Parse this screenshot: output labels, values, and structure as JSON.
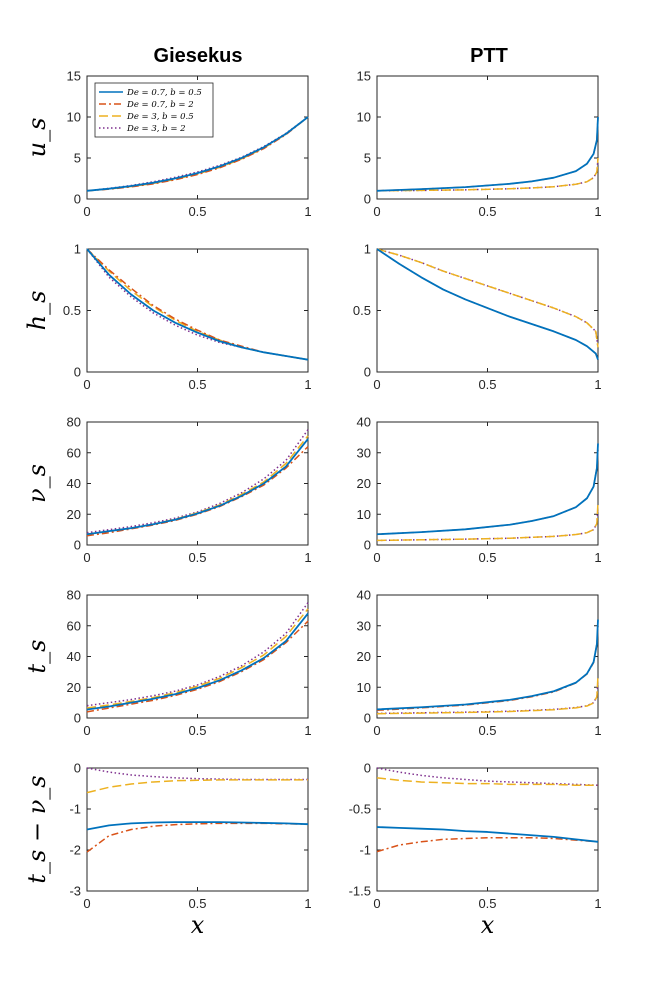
{
  "column_titles": [
    "Giesekus",
    "PTT"
  ],
  "x_axis_label": "x",
  "legend": [
    {
      "label": "De = 0.7, b = 0.5",
      "color": "#0072BD",
      "style": "solid"
    },
    {
      "label": "De = 0.7, b = 2",
      "color": "#D95319",
      "style": "dashdot"
    },
    {
      "label": "De = 3, b = 0.5",
      "color": "#EDB120",
      "style": "dashed"
    },
    {
      "label": "De = 3, b = 2",
      "color": "#7E2F8E",
      "style": "dotted"
    }
  ],
  "chart_data": [
    {
      "type": "line",
      "row": 0,
      "col": 0,
      "ylabel": "u_s",
      "xlim": [
        0,
        1
      ],
      "ylim": [
        0,
        15
      ],
      "xticks": [
        "0",
        "0.5",
        "1"
      ],
      "yticks": [
        "0",
        "5",
        "10",
        "15"
      ],
      "x": [
        0,
        0.1,
        0.2,
        0.3,
        0.4,
        0.5,
        0.6,
        0.7,
        0.8,
        0.9,
        1
      ],
      "series": [
        {
          "name": "De = 0.7, b = 0.5",
          "values": [
            1.0,
            1.26,
            1.58,
            1.99,
            2.51,
            3.16,
            3.98,
            5.01,
            6.31,
            7.94,
            10.0
          ]
        },
        {
          "name": "De = 0.7, b = 2",
          "values": [
            1.0,
            1.2,
            1.48,
            1.85,
            2.35,
            2.98,
            3.8,
            4.85,
            6.15,
            7.85,
            10.0
          ]
        },
        {
          "name": "De = 3, b = 0.5",
          "values": [
            1.0,
            1.22,
            1.52,
            1.9,
            2.4,
            3.05,
            3.85,
            4.9,
            6.2,
            7.9,
            10.0
          ]
        },
        {
          "name": "De = 3, b = 2",
          "values": [
            1.0,
            1.3,
            1.65,
            2.1,
            2.65,
            3.3,
            4.1,
            5.1,
            6.4,
            8.0,
            10.0
          ]
        }
      ]
    },
    {
      "type": "line",
      "row": 0,
      "col": 1,
      "ylabel": "",
      "xlim": [
        0,
        1
      ],
      "ylim": [
        0,
        15
      ],
      "xticks": [
        "0",
        "0.5",
        "1"
      ],
      "yticks": [
        "0",
        "5",
        "10",
        "15"
      ],
      "x": [
        0,
        0.2,
        0.4,
        0.6,
        0.7,
        0.8,
        0.9,
        0.95,
        0.98,
        0.995,
        1
      ],
      "series": [
        {
          "name": "De = 0.7, b = 0.5",
          "values": [
            1.0,
            1.2,
            1.45,
            1.85,
            2.15,
            2.6,
            3.4,
            4.3,
            5.5,
            7.2,
            10.0
          ]
        },
        {
          "name": "De = 0.7, b = 2",
          "values": [
            1.0,
            1.2,
            1.45,
            1.85,
            2.15,
            2.6,
            3.4,
            4.3,
            5.5,
            7.2,
            10.0
          ]
        },
        {
          "name": "De = 3, b = 0.5",
          "values": [
            1.0,
            1.05,
            1.12,
            1.25,
            1.35,
            1.5,
            1.8,
            2.1,
            2.6,
            3.3,
            5.0
          ]
        },
        {
          "name": "De = 3, b = 2",
          "values": [
            1.0,
            1.05,
            1.12,
            1.25,
            1.35,
            1.5,
            1.8,
            2.1,
            2.6,
            3.3,
            5.0
          ]
        }
      ]
    },
    {
      "type": "line",
      "row": 1,
      "col": 0,
      "ylabel": "h_s",
      "xlim": [
        0,
        1
      ],
      "ylim": [
        0,
        1
      ],
      "xticks": [
        "0",
        "0.5",
        "1"
      ],
      "yticks": [
        "0",
        "0.5",
        "1"
      ],
      "x": [
        0,
        0.1,
        0.2,
        0.3,
        0.4,
        0.5,
        0.6,
        0.7,
        0.8,
        0.9,
        1
      ],
      "series": [
        {
          "name": "De = 0.7, b = 0.5",
          "values": [
            1.0,
            0.79,
            0.63,
            0.5,
            0.4,
            0.32,
            0.25,
            0.2,
            0.16,
            0.13,
            0.1
          ]
        },
        {
          "name": "De = 0.7, b = 2",
          "values": [
            1.0,
            0.83,
            0.68,
            0.54,
            0.43,
            0.34,
            0.26,
            0.21,
            0.16,
            0.13,
            0.1
          ]
        },
        {
          "name": "De = 3, b = 0.5",
          "values": [
            1.0,
            0.82,
            0.66,
            0.53,
            0.42,
            0.33,
            0.26,
            0.2,
            0.16,
            0.13,
            0.1
          ]
        },
        {
          "name": "De = 3, b = 2",
          "values": [
            1.0,
            0.77,
            0.61,
            0.48,
            0.38,
            0.3,
            0.24,
            0.2,
            0.16,
            0.13,
            0.1
          ]
        }
      ]
    },
    {
      "type": "line",
      "row": 1,
      "col": 1,
      "ylabel": "",
      "xlim": [
        0,
        1
      ],
      "ylim": [
        0,
        1
      ],
      "xticks": [
        "0",
        "0.5",
        "1"
      ],
      "yticks": [
        "0",
        "0.5",
        "1"
      ],
      "x": [
        0,
        0.1,
        0.2,
        0.3,
        0.4,
        0.5,
        0.6,
        0.7,
        0.8,
        0.9,
        0.95,
        0.99,
        1
      ],
      "series": [
        {
          "name": "De = 0.7, b = 0.5",
          "values": [
            1.0,
            0.88,
            0.77,
            0.67,
            0.59,
            0.52,
            0.45,
            0.39,
            0.33,
            0.26,
            0.21,
            0.15,
            0.1
          ]
        },
        {
          "name": "De = 0.7, b = 2",
          "values": [
            1.0,
            0.88,
            0.77,
            0.67,
            0.59,
            0.52,
            0.45,
            0.39,
            0.33,
            0.26,
            0.21,
            0.15,
            0.1
          ]
        },
        {
          "name": "De = 3, b = 0.5",
          "values": [
            1.0,
            0.95,
            0.89,
            0.82,
            0.76,
            0.7,
            0.64,
            0.58,
            0.52,
            0.45,
            0.4,
            0.33,
            0.2
          ]
        },
        {
          "name": "De = 3, b = 2",
          "values": [
            1.0,
            0.95,
            0.89,
            0.82,
            0.76,
            0.7,
            0.64,
            0.58,
            0.52,
            0.45,
            0.4,
            0.33,
            0.2
          ]
        }
      ]
    },
    {
      "type": "line",
      "row": 2,
      "col": 0,
      "ylabel": "ν_s",
      "xlim": [
        0,
        1
      ],
      "ylim": [
        0,
        80
      ],
      "xticks": [
        "0",
        "0.5",
        "1"
      ],
      "yticks": [
        "0",
        "20",
        "40",
        "60",
        "80"
      ],
      "x": [
        0,
        0.1,
        0.2,
        0.3,
        0.4,
        0.5,
        0.6,
        0.7,
        0.8,
        0.9,
        1
      ],
      "series": [
        {
          "name": "De = 0.7, b = 0.5",
          "values": [
            7,
            9,
            11,
            13.5,
            16.5,
            20.5,
            25.5,
            32,
            40,
            51,
            69
          ]
        },
        {
          "name": "De = 0.7, b = 2",
          "values": [
            6,
            8,
            10.5,
            13,
            16,
            20,
            25,
            31.5,
            39,
            50,
            64
          ]
        },
        {
          "name": "De = 3, b = 0.5",
          "values": [
            7,
            9,
            11,
            13.5,
            16.8,
            21,
            26,
            33,
            41,
            53,
            71
          ]
        },
        {
          "name": "De = 3, b = 2",
          "values": [
            8,
            10,
            12,
            14.5,
            17.5,
            21.5,
            27,
            34,
            43,
            55,
            75
          ]
        }
      ]
    },
    {
      "type": "line",
      "row": 2,
      "col": 1,
      "ylabel": "",
      "xlim": [
        0,
        1
      ],
      "ylim": [
        0,
        40
      ],
      "xticks": [
        "0",
        "0.5",
        "1"
      ],
      "yticks": [
        "0",
        "10",
        "20",
        "30",
        "40"
      ],
      "x": [
        0,
        0.2,
        0.4,
        0.6,
        0.7,
        0.8,
        0.9,
        0.95,
        0.98,
        0.995,
        1
      ],
      "series": [
        {
          "name": "De = 0.7, b = 0.5",
          "values": [
            3.5,
            4.2,
            5.1,
            6.6,
            7.8,
            9.4,
            12.3,
            15.2,
            19,
            25,
            33
          ]
        },
        {
          "name": "De = 0.7, b = 2",
          "values": [
            3.5,
            4.2,
            5.1,
            6.6,
            7.8,
            9.4,
            12.3,
            15.2,
            19,
            25,
            31
          ]
        },
        {
          "name": "De = 3, b = 0.5",
          "values": [
            1.5,
            1.7,
            1.9,
            2.2,
            2.5,
            2.8,
            3.4,
            4,
            5,
            7,
            14
          ]
        },
        {
          "name": "De = 3, b = 2",
          "values": [
            1.5,
            1.7,
            1.9,
            2.2,
            2.5,
            2.8,
            3.4,
            4,
            5,
            7,
            12
          ]
        }
      ]
    },
    {
      "type": "line",
      "row": 3,
      "col": 0,
      "ylabel": "t_s",
      "xlim": [
        0,
        1
      ],
      "ylim": [
        0,
        80
      ],
      "xticks": [
        "0",
        "0.5",
        "1"
      ],
      "yticks": [
        "0",
        "20",
        "40",
        "60",
        "80"
      ],
      "x": [
        0,
        0.1,
        0.2,
        0.3,
        0.4,
        0.5,
        0.6,
        0.7,
        0.8,
        0.9,
        1
      ],
      "series": [
        {
          "name": "De = 0.7, b = 0.5",
          "values": [
            5.5,
            7.5,
            10,
            12.5,
            15.5,
            19.5,
            24.5,
            31,
            39,
            50,
            68
          ]
        },
        {
          "name": "De = 0.7, b = 2",
          "values": [
            4,
            6.5,
            9,
            11.5,
            14.7,
            18.7,
            23.7,
            30.2,
            38,
            49,
            63
          ]
        },
        {
          "name": "De = 3, b = 0.5",
          "values": [
            6.5,
            8.5,
            10.8,
            13.3,
            16.5,
            20.7,
            25.8,
            32.8,
            41,
            53,
            71
          ]
        },
        {
          "name": "De = 3, b = 2",
          "values": [
            8,
            10,
            12,
            14.5,
            17.5,
            21.5,
            27,
            34,
            43,
            55,
            75
          ]
        }
      ]
    },
    {
      "type": "line",
      "row": 3,
      "col": 1,
      "ylabel": "",
      "xlim": [
        0,
        1
      ],
      "ylim": [
        0,
        40
      ],
      "xticks": [
        "0",
        "0.5",
        "1"
      ],
      "yticks": [
        "0",
        "10",
        "20",
        "30",
        "40"
      ],
      "x": [
        0,
        0.2,
        0.4,
        0.6,
        0.7,
        0.8,
        0.9,
        0.95,
        0.98,
        0.995,
        1
      ],
      "series": [
        {
          "name": "De = 0.7, b = 0.5",
          "values": [
            2.8,
            3.5,
            4.4,
            5.9,
            7.1,
            8.7,
            11.5,
            14.4,
            18.2,
            24,
            32
          ]
        },
        {
          "name": "De = 0.7, b = 2",
          "values": [
            2.5,
            3.3,
            4.2,
            5.7,
            6.9,
            8.5,
            11.4,
            14.3,
            18,
            24,
            30
          ]
        },
        {
          "name": "De = 3, b = 0.5",
          "values": [
            1.4,
            1.6,
            1.8,
            2.1,
            2.4,
            2.7,
            3.3,
            3.9,
            4.9,
            6.9,
            14
          ]
        },
        {
          "name": "De = 3, b = 2",
          "values": [
            1.5,
            1.7,
            1.9,
            2.2,
            2.5,
            2.8,
            3.4,
            4,
            5,
            7,
            12
          ]
        }
      ]
    },
    {
      "type": "line",
      "row": 4,
      "col": 0,
      "ylabel": "t_s − ν_s",
      "xlim": [
        0,
        1
      ],
      "ylim": [
        -3,
        0
      ],
      "xticks": [
        "0",
        "0.5",
        "1"
      ],
      "yticks": [
        "-3",
        "-2",
        "-1",
        "0"
      ],
      "x": [
        0,
        0.1,
        0.2,
        0.3,
        0.4,
        0.5,
        0.6,
        0.7,
        0.8,
        0.9,
        1
      ],
      "series": [
        {
          "name": "De = 0.7, b = 0.5",
          "values": [
            -1.5,
            -1.4,
            -1.35,
            -1.33,
            -1.32,
            -1.32,
            -1.32,
            -1.33,
            -1.34,
            -1.35,
            -1.37
          ]
        },
        {
          "name": "De = 0.7, b = 2",
          "values": [
            -2.05,
            -1.65,
            -1.5,
            -1.42,
            -1.38,
            -1.36,
            -1.35,
            -1.35,
            -1.35,
            -1.36,
            -1.37
          ]
        },
        {
          "name": "De = 3, b = 0.5",
          "values": [
            -0.6,
            -0.47,
            -0.39,
            -0.34,
            -0.31,
            -0.3,
            -0.29,
            -0.29,
            -0.29,
            -0.29,
            -0.29
          ]
        },
        {
          "name": "De = 3, b = 2",
          "values": [
            0,
            -0.1,
            -0.17,
            -0.21,
            -0.24,
            -0.26,
            -0.27,
            -0.28,
            -0.28,
            -0.28,
            -0.28
          ]
        }
      ]
    },
    {
      "type": "line",
      "row": 4,
      "col": 1,
      "ylabel": "",
      "xlim": [
        0,
        1
      ],
      "ylim": [
        -1.5,
        0
      ],
      "xticks": [
        "0",
        "0.5",
        "1"
      ],
      "yticks": [
        "-1.5",
        "-1",
        "-0.5",
        "0"
      ],
      "x": [
        0,
        0.1,
        0.2,
        0.3,
        0.4,
        0.5,
        0.6,
        0.7,
        0.8,
        0.9,
        1
      ],
      "series": [
        {
          "name": "De = 0.7, b = 0.5",
          "values": [
            -0.72,
            -0.73,
            -0.74,
            -0.75,
            -0.77,
            -0.78,
            -0.8,
            -0.82,
            -0.84,
            -0.87,
            -0.9
          ]
        },
        {
          "name": "De = 0.7, b = 2",
          "values": [
            -1.02,
            -0.94,
            -0.9,
            -0.87,
            -0.86,
            -0.85,
            -0.85,
            -0.85,
            -0.86,
            -0.88,
            -0.9
          ]
        },
        {
          "name": "De = 3, b = 0.5",
          "values": [
            -0.12,
            -0.15,
            -0.17,
            -0.18,
            -0.19,
            -0.19,
            -0.2,
            -0.2,
            -0.2,
            -0.21,
            -0.21
          ]
        },
        {
          "name": "De = 3, b = 2",
          "values": [
            0,
            -0.05,
            -0.09,
            -0.12,
            -0.14,
            -0.16,
            -0.17,
            -0.18,
            -0.19,
            -0.2,
            -0.21
          ]
        }
      ]
    }
  ]
}
